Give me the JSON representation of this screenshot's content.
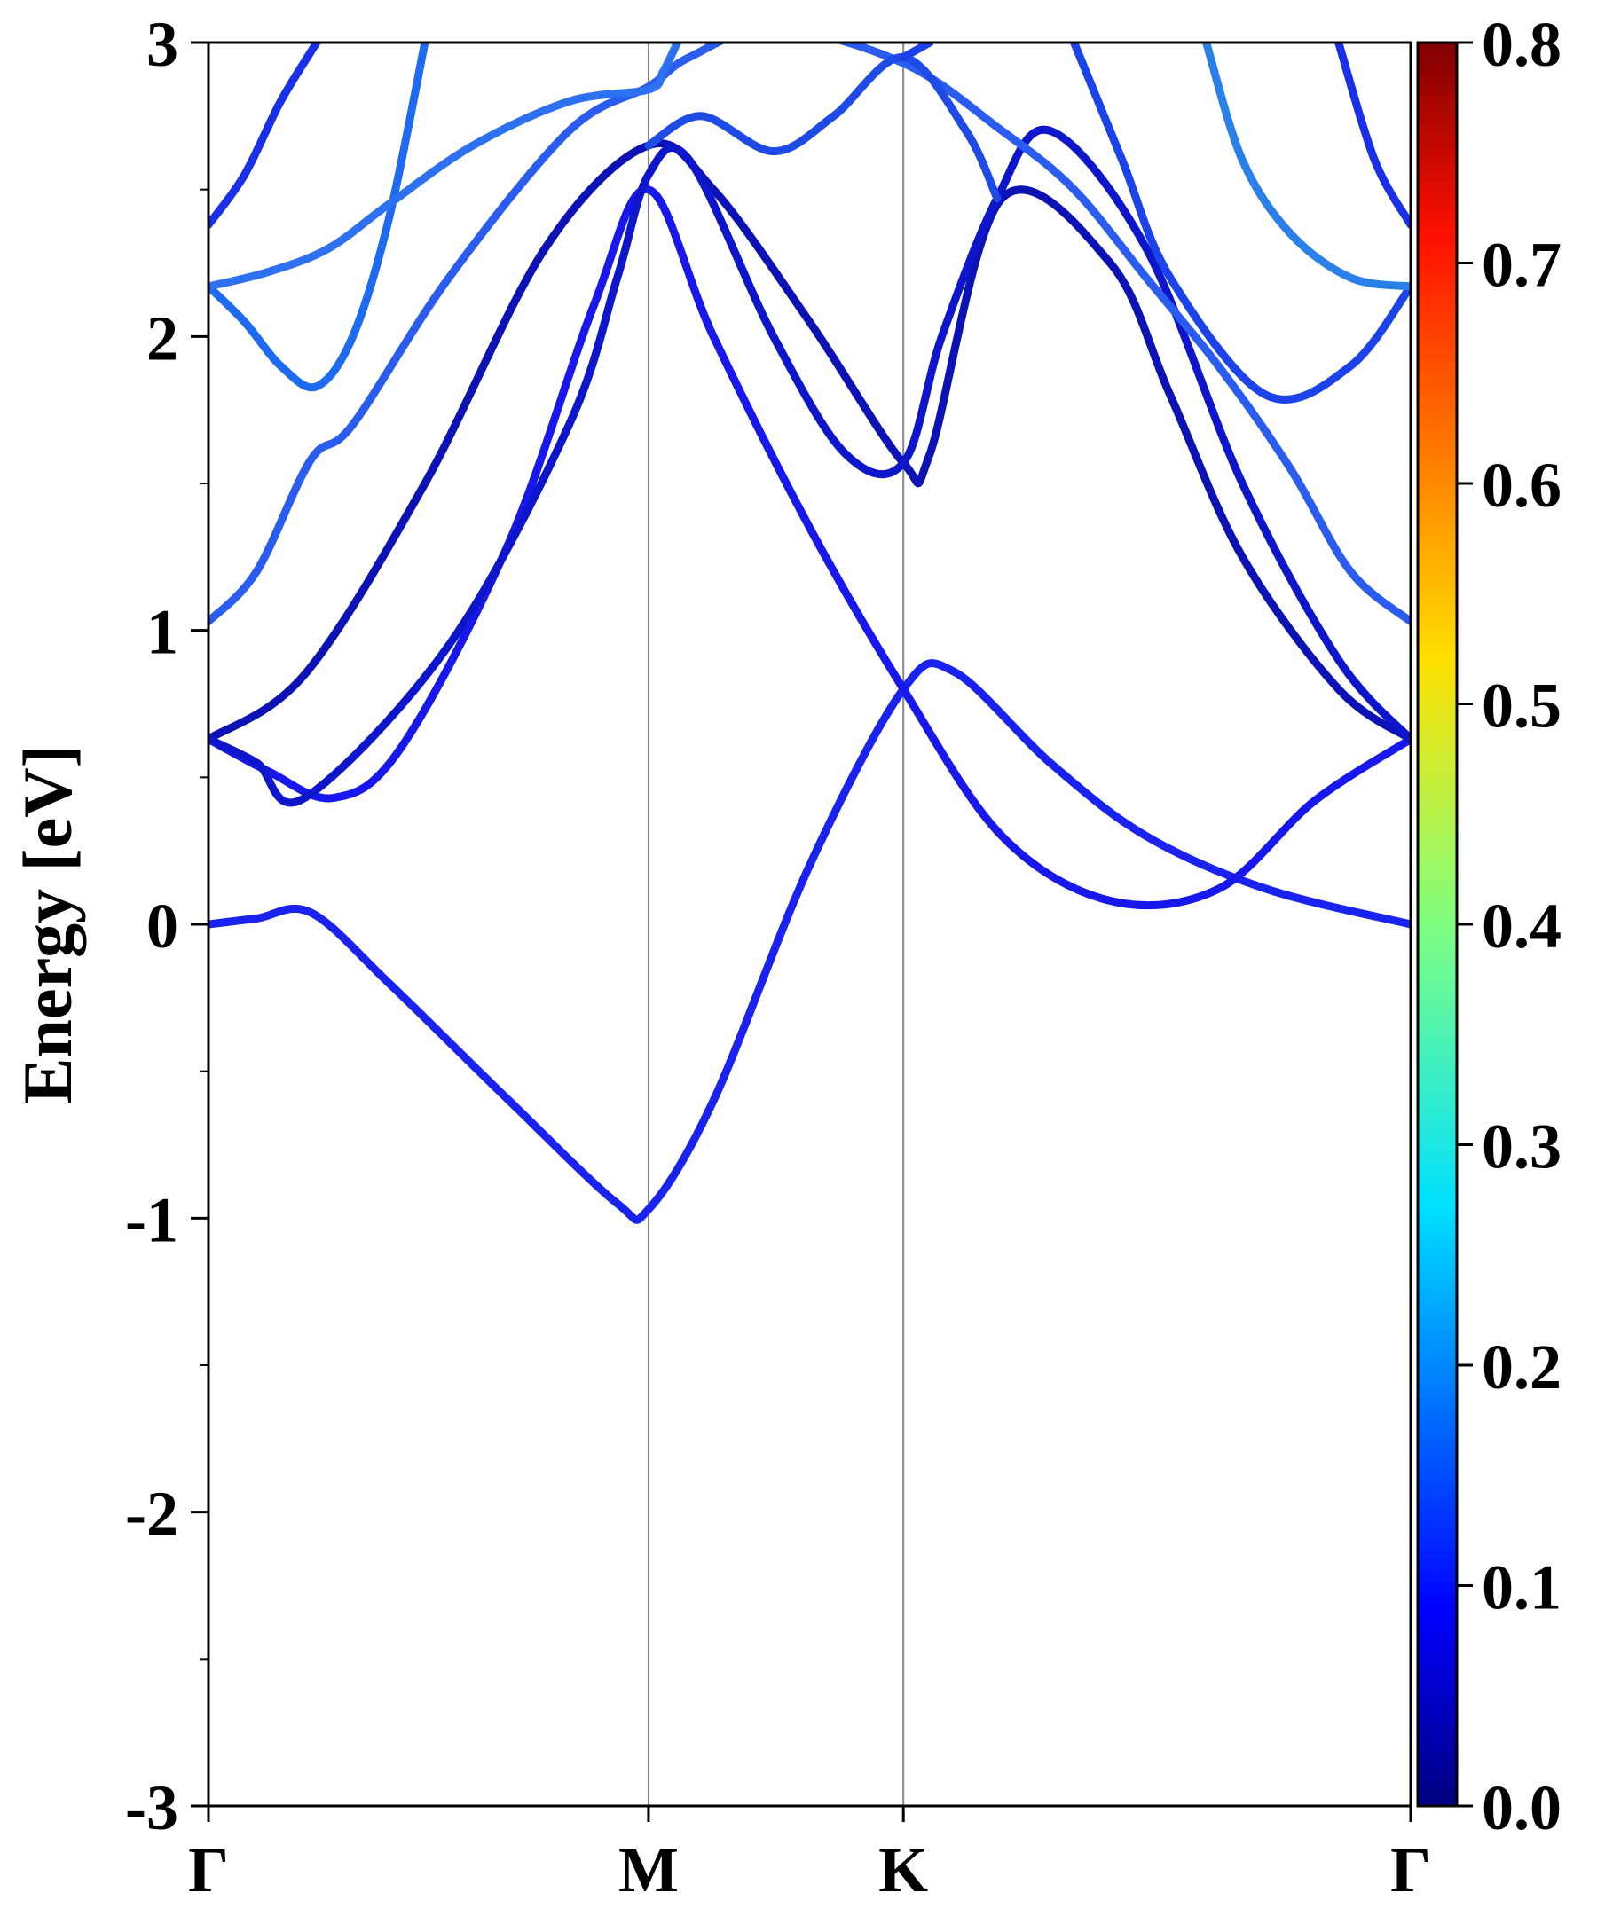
{
  "chart_data": {
    "type": "line",
    "title": "",
    "ylabel": "Energy [eV]",
    "xlabel": "",
    "ylim": [
      -3,
      3
    ],
    "yticks": [
      "3",
      "2",
      "1",
      "0",
      "-1",
      "-2",
      "-3"
    ],
    "ytick_values": [
      3,
      2,
      1,
      0,
      -1,
      -2,
      -3
    ],
    "kpoints": [
      {
        "label": "Γ",
        "pos": 0.0
      },
      {
        "label": "M",
        "pos": 0.366
      },
      {
        "label": "K",
        "pos": 0.578
      },
      {
        "label": "Γ",
        "pos": 1.0
      }
    ],
    "colorbar": {
      "range": [
        0.0,
        0.8
      ],
      "ticks": [
        "0.8",
        "0.7",
        "0.6",
        "0.5",
        "0.4",
        "0.3",
        "0.2",
        "0.1",
        "0.0"
      ],
      "tick_values": [
        0.8,
        0.7,
        0.6,
        0.5,
        0.4,
        0.3,
        0.2,
        0.1,
        0.0
      ],
      "colormap": "jet"
    },
    "series": [
      {
        "color": "#1a22f0",
        "x": [
          0.0,
          0.04,
          0.085,
          0.15,
          0.25,
          0.34,
          0.366,
          0.42,
          0.5,
          0.578,
          0.62,
          0.7,
          0.78,
          0.88,
          1.0
        ],
        "y": [
          0.0,
          0.02,
          0.04,
          -0.2,
          -0.6,
          -0.95,
          -0.97,
          -0.6,
          0.2,
          0.8,
          0.86,
          0.55,
          0.3,
          0.12,
          0.0
        ]
      },
      {
        "color": "#1818ec",
        "x": [
          0.0,
          0.05,
          0.104,
          0.16,
          0.25,
          0.32,
          0.366,
          0.42,
          0.5,
          0.578,
          0.66,
          0.75,
          0.84,
          0.92,
          1.0
        ],
        "y": [
          0.63,
          0.52,
          0.43,
          0.6,
          1.3,
          2.1,
          2.5,
          2.0,
          1.35,
          0.8,
          0.3,
          0.08,
          0.12,
          0.42,
          0.63
        ]
      },
      {
        "color": "#0d12b5",
        "x": [
          0.0,
          0.08,
          0.18,
          0.28,
          0.366,
          0.42,
          0.5,
          0.578,
          0.6,
          0.66,
          0.75,
          0.8,
          0.86,
          0.94,
          1.0
        ],
        "y": [
          0.63,
          0.85,
          1.5,
          2.3,
          2.65,
          2.5,
          2.05,
          1.57,
          1.6,
          2.47,
          2.25,
          1.8,
          1.25,
          0.8,
          0.63
        ]
      },
      {
        "color": "#0e16cc",
        "x": [
          0.0,
          0.04,
          0.08,
          0.2,
          0.3,
          0.34,
          0.366,
          0.4,
          0.47,
          0.53,
          0.578,
          0.61,
          0.656,
          0.7,
          0.78,
          0.86,
          0.94,
          1.0
        ],
        "y": [
          0.63,
          0.55,
          0.43,
          0.95,
          1.7,
          2.2,
          2.55,
          2.6,
          2.0,
          1.6,
          1.57,
          2.0,
          2.47,
          2.7,
          2.3,
          1.5,
          0.9,
          0.63
        ]
      },
      {
        "color": "#2a5cf0",
        "x": [
          0.0,
          0.04,
          0.085,
          0.12,
          0.2,
          0.3,
          0.366,
          0.4,
          0.47,
          0.578,
          0.66,
          0.72,
          0.78,
          0.84,
          0.9,
          0.95,
          1.0
        ],
        "y": [
          1.03,
          1.2,
          1.58,
          1.7,
          2.2,
          2.7,
          2.85,
          2.95,
          3.05,
          2.93,
          2.7,
          2.5,
          2.2,
          1.9,
          1.55,
          1.2,
          1.03
        ]
      },
      {
        "color": "#1e6af0",
        "x": [
          0.0,
          0.03,
          0.06,
          0.09,
          0.12,
          0.15,
          0.18
        ],
        "y": [
          2.17,
          2.05,
          1.9,
          1.83,
          2.0,
          2.4,
          3.0
        ]
      },
      {
        "color": "#2d70f0",
        "x": [
          0.0,
          0.05,
          0.1,
          0.15,
          0.22,
          0.3,
          0.366,
          0.378,
          0.39
        ],
        "y": [
          2.17,
          2.22,
          2.3,
          2.45,
          2.65,
          2.8,
          2.84,
          2.9,
          3.0
        ]
      },
      {
        "color": "#1a30e8",
        "x": [
          0.0,
          0.03,
          0.06,
          0.09
        ],
        "y": [
          2.38,
          2.55,
          2.8,
          3.0
        ]
      },
      {
        "color": "#1e4ae6",
        "x": [
          0.366,
          0.41,
          0.47,
          0.52,
          0.578,
          0.63,
          0.656
        ],
        "y": [
          2.65,
          2.75,
          2.63,
          2.75,
          2.95,
          2.7,
          2.47
        ]
      },
      {
        "color": "#1c40ea",
        "x": [
          0.578,
          0.6
        ],
        "y": [
          2.95,
          3.0
        ]
      },
      {
        "color": "#1c42ea",
        "x": [
          0.72,
          0.76,
          0.8,
          0.88,
          0.95,
          1.0
        ],
        "y": [
          3.0,
          2.6,
          2.2,
          1.8,
          1.9,
          2.17
        ]
      },
      {
        "color": "#1a30e8",
        "x": [
          0.94,
          0.97,
          1.0
        ],
        "y": [
          3.0,
          2.6,
          2.38
        ]
      },
      {
        "color": "#2a80e8",
        "x": [
          0.83,
          0.86,
          0.9,
          0.95,
          1.0
        ],
        "y": [
          3.0,
          2.6,
          2.35,
          2.2,
          2.17
        ]
      }
    ]
  }
}
